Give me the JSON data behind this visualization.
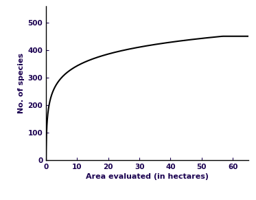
{
  "xlabel": "Area evaluated (in hectares)",
  "ylabel": "No. of species",
  "line_color": "#000000",
  "background_color": "#ffffff",
  "xlim": [
    0,
    65
  ],
  "ylim": [
    0,
    560
  ],
  "xticks": [
    0,
    10,
    20,
    30,
    40,
    50,
    60
  ],
  "yticks": [
    0,
    100,
    200,
    300,
    400,
    500
  ],
  "asymptote": 450,
  "log_scale": 150,
  "xlabel_fontsize": 8,
  "ylabel_fontsize": 8,
  "tick_fontsize": 7.5,
  "text_color": "#1a0050",
  "linewidth": 1.5
}
